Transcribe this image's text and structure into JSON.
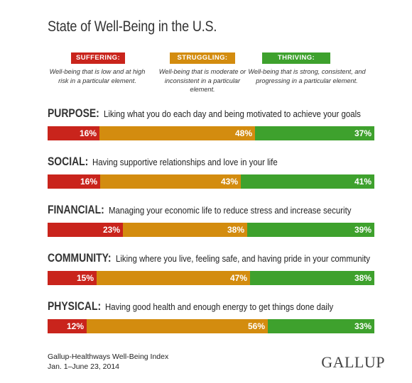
{
  "title": "State of Well-Being in the U.S.",
  "colors": {
    "suffering": "#c9241c",
    "struggling": "#d38c0f",
    "thriving": "#3ea12d"
  },
  "legend": [
    {
      "key": "suffering",
      "label": "SUFFERING:",
      "desc": "Well-being that is low and at high risk in a particular element."
    },
    {
      "key": "struggling",
      "label": "STRUGGLING:",
      "desc": "Well-being that is moderate or inconsistent in a particular element."
    },
    {
      "key": "thriving",
      "label": "THRIVING:",
      "desc": "Well-being that is strong, consistent, and progressing in a particular element."
    }
  ],
  "chart_data": {
    "type": "bar",
    "orientation": "horizontal-stacked",
    "series_order": [
      "Suffering",
      "Struggling",
      "Thriving"
    ],
    "categories": [
      {
        "name": "PURPOSE:",
        "desc": "Liking what you do each day and being motivated to achieve your goals",
        "values": [
          16,
          48,
          37
        ],
        "labels": [
          "16%",
          "48%",
          "37%"
        ]
      },
      {
        "name": "SOCIAL:",
        "desc": "Having supportive relationships and love in your life",
        "values": [
          16,
          43,
          41
        ],
        "labels": [
          "16%",
          "43%",
          "41%"
        ]
      },
      {
        "name": "FINANCIAL:",
        "desc": "Managing your economic life to reduce stress and increase security",
        "values": [
          23,
          38,
          39
        ],
        "labels": [
          "23%",
          "38%",
          "39%"
        ]
      },
      {
        "name": "COMMUNITY:",
        "desc": "Liking where you live, feeling safe, and having pride in your community",
        "values": [
          15,
          47,
          38
        ],
        "labels": [
          "15%",
          "47%",
          "38%"
        ]
      },
      {
        "name": "PHYSICAL:",
        "desc": "Having good health and enough energy to get things done daily",
        "values": [
          12,
          56,
          33
        ],
        "labels": [
          "12%",
          "56%",
          "33%"
        ]
      }
    ]
  },
  "source_line1": "Gallup-Healthways Well-Being Index",
  "source_line2": "Jan. 1–June 23, 2014",
  "logo": "GALLUP"
}
